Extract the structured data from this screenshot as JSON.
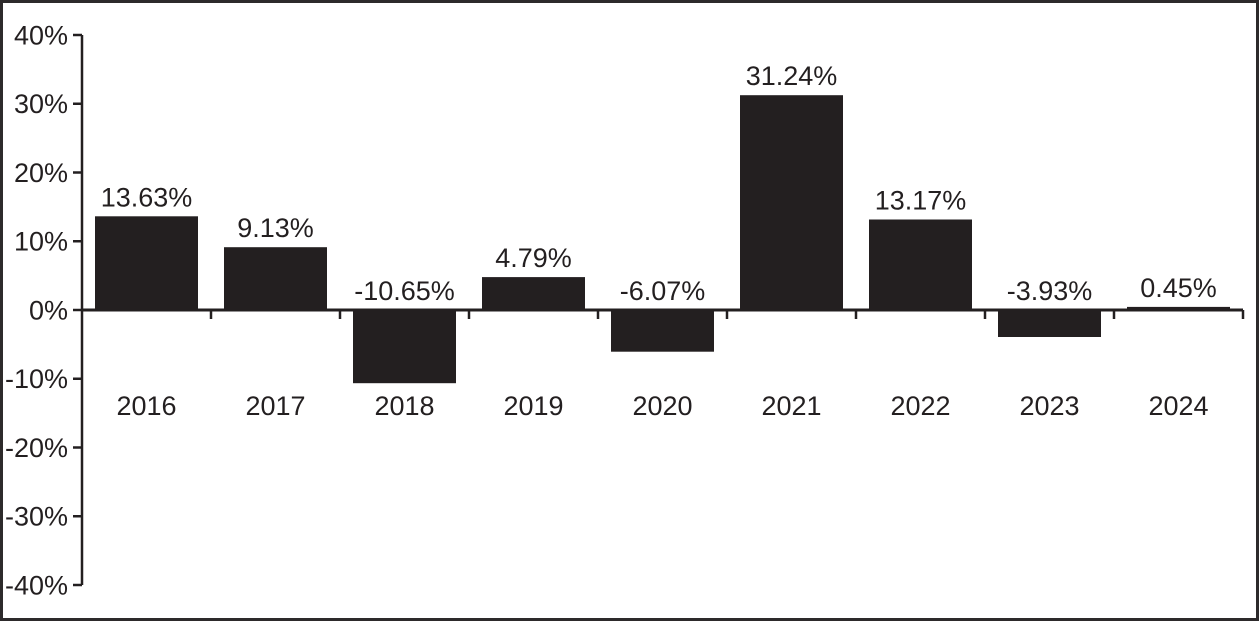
{
  "chart_data": {
    "type": "bar",
    "categories": [
      "2016",
      "2017",
      "2018",
      "2019",
      "2020",
      "2021",
      "2022",
      "2023",
      "2024"
    ],
    "values": [
      13.63,
      9.13,
      -10.65,
      4.79,
      -6.07,
      31.24,
      13.17,
      -3.93,
      0.45
    ],
    "value_labels": [
      "13.63%",
      "9.13%",
      "-10.65%",
      "4.79%",
      "-6.07%",
      "31.24%",
      "13.17%",
      "-3.93%",
      "0.45%"
    ],
    "title": "",
    "xlabel": "",
    "ylabel": "",
    "ylim": [
      -40,
      40
    ],
    "yticks": [
      40,
      30,
      20,
      10,
      0,
      -10,
      -20,
      -30,
      -40
    ],
    "ytick_labels": [
      "40%",
      "30%",
      "20%",
      "10%",
      "0%",
      "-10%",
      "-20%",
      "-30%",
      "-40%"
    ],
    "grid": false,
    "legend": "none",
    "bar_color": "#231f20",
    "axis_color": "#231f20",
    "text_color": "#231f20",
    "background": "#ffffff"
  },
  "frame": {
    "border_color": "#2d2a2b"
  }
}
